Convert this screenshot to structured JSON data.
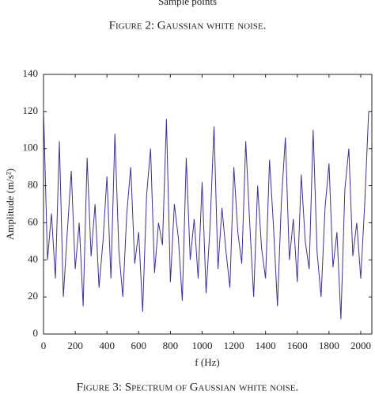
{
  "previous_x_label": "Sample points",
  "previous_caption": "Figure 2: Gaussian white noise.",
  "caption": "Figure 3: Spectrum of Gaussian white noise.",
  "chart_data": {
    "type": "line",
    "x_label": "f (Hz)",
    "y_label": "Amplitude (m/s²)",
    "x": [
      0,
      25,
      50,
      75,
      100,
      125,
      150,
      175,
      200,
      225,
      250,
      275,
      300,
      325,
      350,
      375,
      400,
      425,
      450,
      475,
      500,
      525,
      550,
      575,
      600,
      625,
      650,
      675,
      700,
      725,
      750,
      775,
      800,
      825,
      850,
      875,
      900,
      925,
      950,
      975,
      1000,
      1025,
      1050,
      1075,
      1100,
      1125,
      1150,
      1175,
      1200,
      1225,
      1250,
      1275,
      1300,
      1325,
      1350,
      1375,
      1400,
      1425,
      1450,
      1475,
      1500,
      1525,
      1550,
      1575,
      1600,
      1625,
      1650,
      1675,
      1700,
      1725,
      1750,
      1775,
      1800,
      1825,
      1850,
      1875,
      1900,
      1925,
      1950,
      1975,
      2000,
      2025,
      2050
    ],
    "series": [
      {
        "color": "#3b3197",
        "values": [
          122,
          40,
          65,
          30,
          104,
          20,
          55,
          88,
          35,
          60,
          15,
          95,
          42,
          70,
          25,
          50,
          85,
          30,
          108,
          45,
          20,
          65,
          90,
          38,
          55,
          12,
          75,
          100,
          33,
          60,
          48,
          116,
          28,
          70,
          52,
          18,
          95,
          40,
          62,
          30,
          82,
          22,
          58,
          112,
          35,
          68,
          45,
          25,
          90,
          55,
          38,
          104,
          60,
          20,
          80,
          46,
          30,
          94,
          58,
          15,
          72,
          106,
          40,
          62,
          28,
          86,
          50,
          35,
          110,
          44,
          20,
          68,
          92,
          36,
          55,
          8,
          78,
          100,
          42,
          60,
          30,
          70,
          120
        ]
      }
    ],
    "xlim": [
      0,
      2070
    ],
    "ylim": [
      0,
      140
    ],
    "xticks": [
      0,
      200,
      400,
      600,
      800,
      1000,
      1200,
      1400,
      1600,
      1800,
      2000
    ],
    "yticks": [
      0,
      20,
      40,
      60,
      80,
      100,
      120,
      140
    ]
  }
}
